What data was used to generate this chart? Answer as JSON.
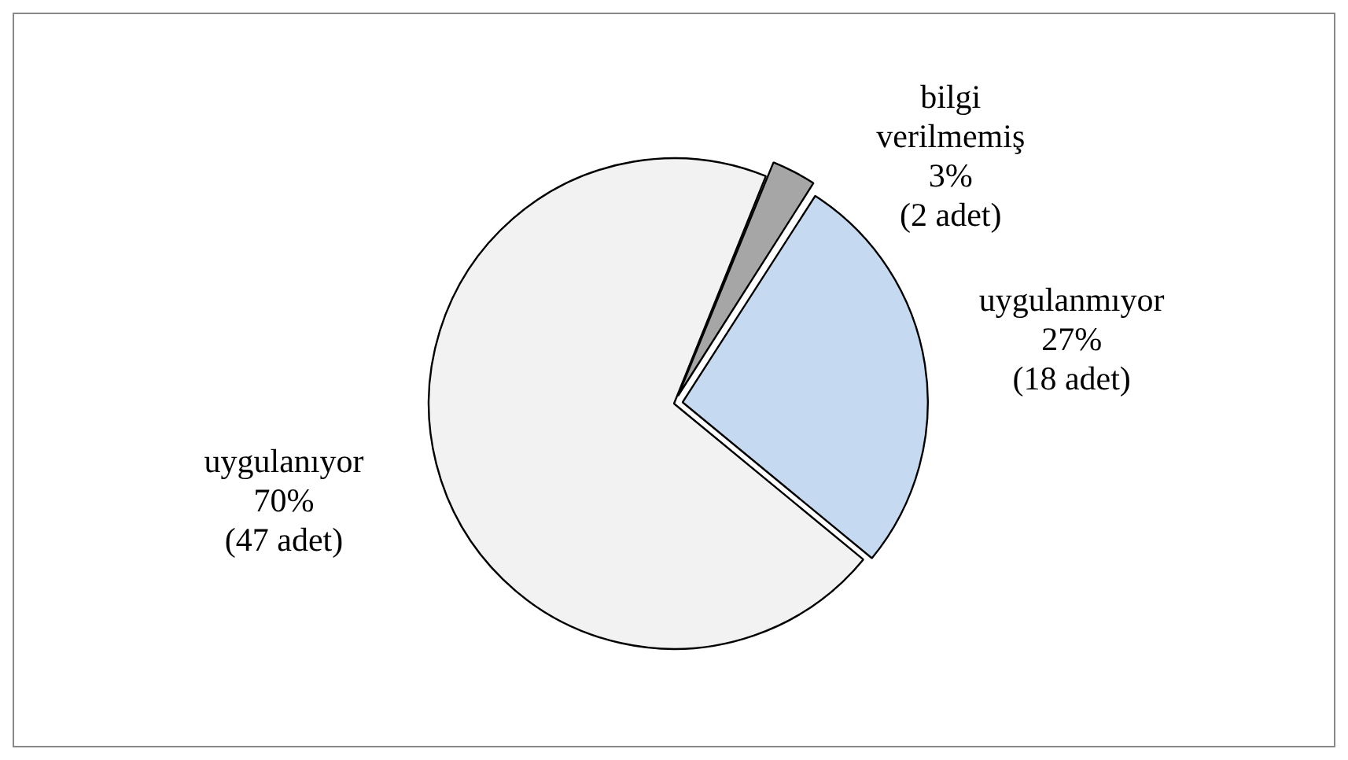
{
  "chart_data": {
    "type": "pie",
    "categories": [
      "bilgi verilmemiş",
      "uygulanmıyor",
      "uygulanıyor"
    ],
    "values": [
      2,
      18,
      47
    ],
    "value_labels": [
      "3%\n(2 adet)",
      "27%\n(18 adet)",
      "70%\n(47 adet)"
    ],
    "colors": [
      "#a6a6a6",
      "#c5d9f1",
      "#f2f2f2"
    ],
    "legend": false
  }
}
